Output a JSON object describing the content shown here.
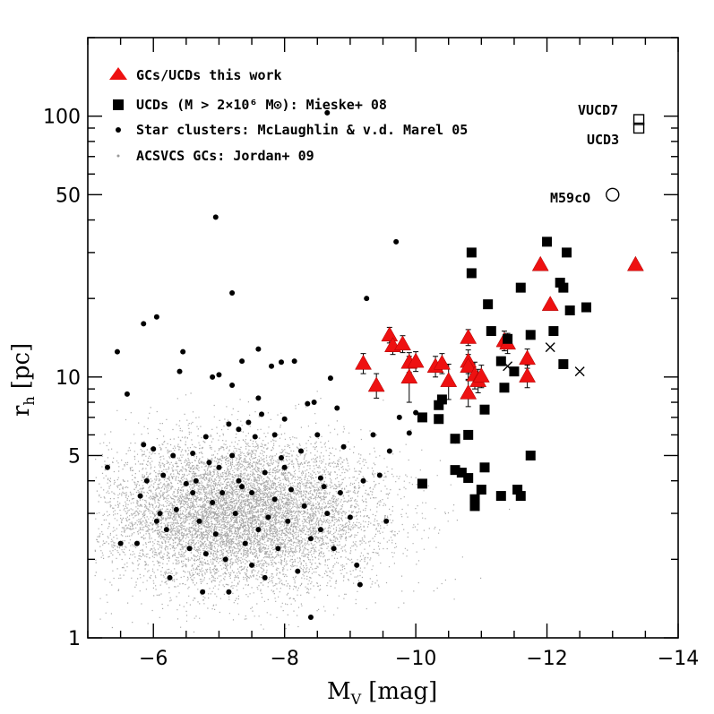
{
  "chart_data": {
    "type": "scatter",
    "xlabel": "M",
    "xlabel_sub": "V",
    "xlabel_unit": "[mag]",
    "ylabel": "r",
    "ylabel_sub": "h",
    "ylabel_unit": "[pc]",
    "x_axis_inverted": true,
    "xlim": [
      -5,
      -14
    ],
    "ylim": [
      1,
      200
    ],
    "yscale": "log",
    "x_ticks": [
      -6,
      -8,
      -10,
      -12,
      -14
    ],
    "x_tick_labels": [
      "−6",
      "−8",
      "−10",
      "−12",
      "−14"
    ],
    "y_ticks": [
      1,
      5,
      10,
      50,
      100
    ],
    "y_tick_labels": [
      "1",
      "5",
      "10",
      "50",
      "100"
    ],
    "legend": {
      "placement": "top-left",
      "entries": [
        {
          "label": "GCs/UCDs this work",
          "marker": "triangle",
          "color": "#ee1111"
        },
        {
          "label": "UCDs (M > 2×10⁶ M⊙): Mieske+ 08",
          "marker": "square",
          "color": "#000000"
        },
        {
          "label": "Star clusters: McLaughlin & v.d. Marel 05",
          "marker": "dot",
          "color": "#000000"
        },
        {
          "label": "ACSVCS GCs: Jordan+ 09",
          "marker": "small-dot",
          "color": "#999999"
        }
      ]
    },
    "annotations": [
      {
        "text": "VUCD7",
        "x": -13.4,
        "y": 97
      },
      {
        "text": "UCD3",
        "x": -13.4,
        "y": 90
      },
      {
        "text": "M59cO",
        "x": -13.0,
        "y": 50
      }
    ],
    "series": [
      {
        "name": "GCs/UCDs this work",
        "marker": "triangle",
        "color": "#ee1111",
        "points": [
          {
            "x": -9.2,
            "y": 11.3,
            "err": 1.0
          },
          {
            "x": -9.4,
            "y": 9.3,
            "err": 1.0
          },
          {
            "x": -9.6,
            "y": 14.5,
            "err": 1.0
          },
          {
            "x": -9.65,
            "y": 13.2,
            "err": 1.0
          },
          {
            "x": -9.8,
            "y": 13.4,
            "err": 1.0
          },
          {
            "x": -9.9,
            "y": 10.0,
            "err": 2.0
          },
          {
            "x": -9.9,
            "y": 11.4,
            "err": 1.0
          },
          {
            "x": -10.0,
            "y": 11.5,
            "err": 1.0
          },
          {
            "x": -10.3,
            "y": 11.0,
            "err": 1.0
          },
          {
            "x": -10.4,
            "y": 11.3,
            "err": 1.0
          },
          {
            "x": -10.5,
            "y": 9.7,
            "err": 1.5
          },
          {
            "x": -10.8,
            "y": 14.2,
            "err": 1.0
          },
          {
            "x": -10.8,
            "y": 11.5,
            "err": 1.2
          },
          {
            "x": -10.8,
            "y": 11.0,
            "err": 1.2
          },
          {
            "x": -10.8,
            "y": 8.7,
            "err": 1.0
          },
          {
            "x": -10.9,
            "y": 10.2,
            "err": 1.2
          },
          {
            "x": -10.95,
            "y": 9.7,
            "err": 1.0
          },
          {
            "x": -11.0,
            "y": 10.1,
            "err": 1.0
          },
          {
            "x": -11.35,
            "y": 13.8,
            "err": 1.2
          },
          {
            "x": -11.4,
            "y": 13.5,
            "err": 1.2
          },
          {
            "x": -11.7,
            "y": 11.8,
            "err": 1.0
          },
          {
            "x": -11.7,
            "y": 10.1,
            "err": 1.0
          },
          {
            "x": -11.9,
            "y": 27.0,
            "err": 0
          },
          {
            "x": -12.05,
            "y": 19.0,
            "err": 0
          },
          {
            "x": -13.35,
            "y": 27.0,
            "err": 0
          }
        ]
      },
      {
        "name": "UCDs Mieske+ 08",
        "marker": "square",
        "color": "#000000",
        "points": [
          {
            "x": -10.1,
            "y": 7.0
          },
          {
            "x": -10.1,
            "y": 3.9
          },
          {
            "x": -10.35,
            "y": 6.9
          },
          {
            "x": -10.35,
            "y": 7.8
          },
          {
            "x": -10.4,
            "y": 8.2
          },
          {
            "x": -10.6,
            "y": 4.4
          },
          {
            "x": -10.6,
            "y": 5.8
          },
          {
            "x": -10.7,
            "y": 4.3
          },
          {
            "x": -10.8,
            "y": 6.0
          },
          {
            "x": -10.8,
            "y": 4.1
          },
          {
            "x": -10.85,
            "y": 30.0
          },
          {
            "x": -10.85,
            "y": 25.0
          },
          {
            "x": -10.9,
            "y": 3.4
          },
          {
            "x": -10.9,
            "y": 3.2
          },
          {
            "x": -11.0,
            "y": 3.7
          },
          {
            "x": -11.05,
            "y": 4.5
          },
          {
            "x": -11.05,
            "y": 7.5
          },
          {
            "x": -11.1,
            "y": 19.0
          },
          {
            "x": -11.15,
            "y": 15.0
          },
          {
            "x": -11.3,
            "y": 11.5
          },
          {
            "x": -11.3,
            "y": 3.5
          },
          {
            "x": -11.35,
            "y": 9.1
          },
          {
            "x": -11.4,
            "y": 14.0
          },
          {
            "x": -11.5,
            "y": 10.5
          },
          {
            "x": -11.55,
            "y": 3.7
          },
          {
            "x": -11.6,
            "y": 22.0
          },
          {
            "x": -11.6,
            "y": 3.5
          },
          {
            "x": -11.75,
            "y": 14.5
          },
          {
            "x": -11.75,
            "y": 5.0
          },
          {
            "x": -12.0,
            "y": 33.0
          },
          {
            "x": -12.1,
            "y": 15.0
          },
          {
            "x": -12.2,
            "y": 23.0
          },
          {
            "x": -12.25,
            "y": 22.0
          },
          {
            "x": -12.25,
            "y": 11.2
          },
          {
            "x": -12.3,
            "y": 30.0
          },
          {
            "x": -12.35,
            "y": 18.0
          },
          {
            "x": -12.6,
            "y": 18.5
          }
        ]
      },
      {
        "name": "Open symbols",
        "marker": "open",
        "color": "#000000",
        "points": [
          {
            "x": -13.4,
            "y": 97.0,
            "shape": "square"
          },
          {
            "x": -13.4,
            "y": 90.0,
            "shape": "square"
          },
          {
            "x": -13.0,
            "y": 50.0,
            "shape": "circle"
          }
        ]
      },
      {
        "name": "Crosses",
        "marker": "cross",
        "color": "#000000",
        "points": [
          {
            "x": -11.4,
            "y": 11.0
          },
          {
            "x": -12.05,
            "y": 13.0
          },
          {
            "x": -12.5,
            "y": 10.5
          }
        ]
      },
      {
        "name": "Star clusters McLaughlin & v.d. Marel 05",
        "marker": "dot",
        "color": "#000000",
        "points": [
          {
            "x": -5.3,
            "y": 4.5
          },
          {
            "x": -5.45,
            "y": 12.5
          },
          {
            "x": -5.5,
            "y": 2.3
          },
          {
            "x": -5.6,
            "y": 8.6
          },
          {
            "x": -5.75,
            "y": 2.3
          },
          {
            "x": -5.8,
            "y": 3.5
          },
          {
            "x": -5.85,
            "y": 5.5
          },
          {
            "x": -5.85,
            "y": 16.0
          },
          {
            "x": -5.9,
            "y": 4.0
          },
          {
            "x": -6.0,
            "y": 5.3
          },
          {
            "x": -6.05,
            "y": 17.0
          },
          {
            "x": -6.1,
            "y": 3.0
          },
          {
            "x": -6.15,
            "y": 4.2
          },
          {
            "x": -6.2,
            "y": 2.6
          },
          {
            "x": -6.25,
            "y": 1.7
          },
          {
            "x": -6.3,
            "y": 5.0
          },
          {
            "x": -6.35,
            "y": 3.1
          },
          {
            "x": -6.4,
            "y": 10.5
          },
          {
            "x": -6.45,
            "y": 12.5
          },
          {
            "x": -6.5,
            "y": 3.9
          },
          {
            "x": -6.55,
            "y": 2.2
          },
          {
            "x": -6.6,
            "y": 5.1
          },
          {
            "x": -6.65,
            "y": 4.0
          },
          {
            "x": -6.7,
            "y": 2.8
          },
          {
            "x": -6.75,
            "y": 1.5
          },
          {
            "x": -6.8,
            "y": 5.9
          },
          {
            "x": -6.85,
            "y": 4.7
          },
          {
            "x": -6.9,
            "y": 3.3
          },
          {
            "x": -6.9,
            "y": 10.0
          },
          {
            "x": -6.95,
            "y": 2.5
          },
          {
            "x": -6.95,
            "y": 41.0
          },
          {
            "x": -7.0,
            "y": 10.2
          },
          {
            "x": -7.0,
            "y": 4.5
          },
          {
            "x": -7.05,
            "y": 3.6
          },
          {
            "x": -7.1,
            "y": 2.0
          },
          {
            "x": -7.15,
            "y": 6.6
          },
          {
            "x": -7.15,
            "y": 1.5
          },
          {
            "x": -7.2,
            "y": 21.0
          },
          {
            "x": -7.2,
            "y": 5.0
          },
          {
            "x": -7.2,
            "y": 9.3
          },
          {
            "x": -7.25,
            "y": 3.0
          },
          {
            "x": -7.3,
            "y": 6.3
          },
          {
            "x": -7.35,
            "y": 3.8
          },
          {
            "x": -7.35,
            "y": 11.5
          },
          {
            "x": -7.4,
            "y": 2.3
          },
          {
            "x": -7.45,
            "y": 6.7
          },
          {
            "x": -7.5,
            "y": 1.9
          },
          {
            "x": -7.5,
            "y": 3.6
          },
          {
            "x": -7.55,
            "y": 5.9
          },
          {
            "x": -7.6,
            "y": 12.8
          },
          {
            "x": -7.6,
            "y": 2.6
          },
          {
            "x": -7.65,
            "y": 7.2
          },
          {
            "x": -7.7,
            "y": 4.3
          },
          {
            "x": -7.7,
            "y": 1.7
          },
          {
            "x": -7.75,
            "y": 2.9
          },
          {
            "x": -7.8,
            "y": 11.0
          },
          {
            "x": -7.85,
            "y": 6.0
          },
          {
            "x": -7.85,
            "y": 3.4
          },
          {
            "x": -7.9,
            "y": 2.2
          },
          {
            "x": -7.95,
            "y": 11.4
          },
          {
            "x": -8.0,
            "y": 6.9
          },
          {
            "x": -8.0,
            "y": 4.5
          },
          {
            "x": -8.05,
            "y": 2.8
          },
          {
            "x": -8.1,
            "y": 3.7
          },
          {
            "x": -8.15,
            "y": 11.5
          },
          {
            "x": -8.2,
            "y": 1.8
          },
          {
            "x": -8.25,
            "y": 5.2
          },
          {
            "x": -8.3,
            "y": 3.2
          },
          {
            "x": -8.35,
            "y": 7.9
          },
          {
            "x": -8.4,
            "y": 2.4
          },
          {
            "x": -8.4,
            "y": 1.2
          },
          {
            "x": -8.45,
            "y": 8.0
          },
          {
            "x": -8.5,
            "y": 6.0
          },
          {
            "x": -8.55,
            "y": 4.1
          },
          {
            "x": -8.6,
            "y": 3.8
          },
          {
            "x": -8.65,
            "y": 3.0
          },
          {
            "x": -8.7,
            "y": 9.9
          },
          {
            "x": -8.75,
            "y": 2.2
          },
          {
            "x": -8.8,
            "y": 7.6
          },
          {
            "x": -8.85,
            "y": 3.6
          },
          {
            "x": -8.9,
            "y": 5.4
          },
          {
            "x": -9.0,
            "y": 2.9
          },
          {
            "x": -9.1,
            "y": 1.9
          },
          {
            "x": -9.15,
            "y": 1.6
          },
          {
            "x": -9.25,
            "y": 20.0
          },
          {
            "x": -9.35,
            "y": 6.0
          },
          {
            "x": -9.45,
            "y": 4.2
          },
          {
            "x": -9.55,
            "y": 2.8
          },
          {
            "x": -9.6,
            "y": 5.2
          },
          {
            "x": -9.7,
            "y": 33.0
          },
          {
            "x": -9.75,
            "y": 7.0
          },
          {
            "x": -9.9,
            "y": 6.1
          },
          {
            "x": -10.0,
            "y": 7.3
          },
          {
            "x": -8.65,
            "y": 103.0
          },
          {
            "x": -6.05,
            "y": 2.8
          },
          {
            "x": -6.8,
            "y": 2.1
          },
          {
            "x": -7.3,
            "y": 4.0
          },
          {
            "x": -7.95,
            "y": 4.9
          },
          {
            "x": -8.55,
            "y": 2.6
          },
          {
            "x": -9.2,
            "y": 4.0
          },
          {
            "x": -6.6,
            "y": 3.6
          },
          {
            "x": -7.6,
            "y": 8.3
          }
        ]
      },
      {
        "name": "ACSVCS GCs Jordan+ 09",
        "marker": "small-dot",
        "color": "#a0a0a0",
        "distribution": {
          "center_x": -7.3,
          "center_y": 3.0,
          "sigma_x": 1.2,
          "sigma_logy": 0.14,
          "n": 9000
        }
      }
    ]
  }
}
